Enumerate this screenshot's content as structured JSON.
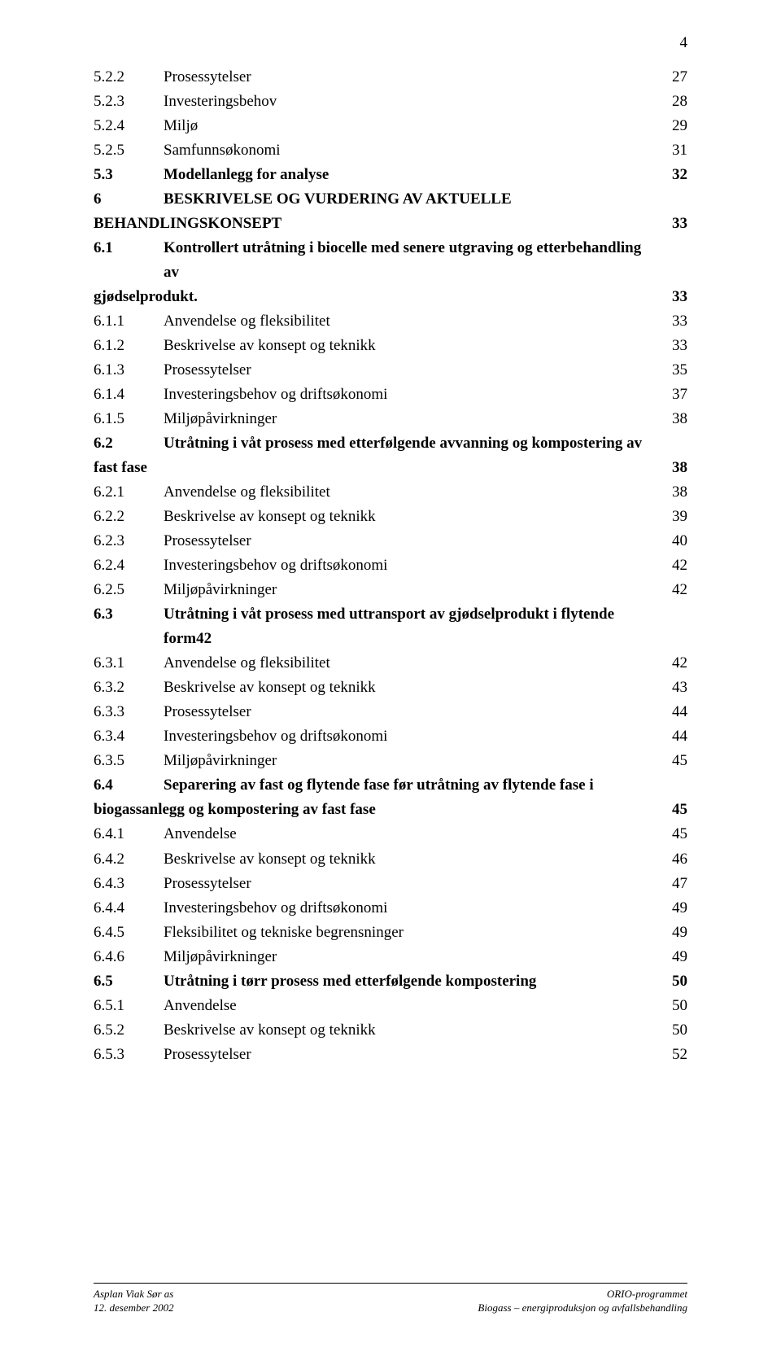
{
  "page_number": "4",
  "toc": [
    {
      "num": "5.2.2",
      "label": "Prosessytelser",
      "page": "27",
      "bold": false
    },
    {
      "num": "5.2.3",
      "label": "Investeringsbehov",
      "page": "28",
      "bold": false
    },
    {
      "num": "5.2.4",
      "label": "Miljø",
      "page": "29",
      "bold": false
    },
    {
      "num": "5.2.5",
      "label": "Samfunnsøkonomi",
      "page": "31",
      "bold": false
    },
    {
      "num": "5.3",
      "label": "Modellanlegg for analyse",
      "page": "32",
      "bold": true
    },
    {
      "num": "6",
      "label": "BESKRIVELSE OG VURDERING AV AKTUELLE",
      "page": "",
      "bold": true,
      "nowrap": true
    },
    {
      "num": "",
      "label": "BEHANDLINGSKONSEPT",
      "page": "33",
      "bold": true,
      "continuation": true
    },
    {
      "num": "6.1",
      "label": "Kontrollert utråtning i biocelle med senere utgraving og etterbehandling av",
      "page": "",
      "bold": true
    },
    {
      "num": "",
      "label": "gjødselprodukt.",
      "page": "33",
      "bold": true,
      "continuation": true
    },
    {
      "num": "6.1.1",
      "label": "Anvendelse og fleksibilitet",
      "page": "33",
      "bold": false
    },
    {
      "num": "6.1.2",
      "label": "Beskrivelse av konsept og teknikk",
      "page": "33",
      "bold": false
    },
    {
      "num": "6.1.3",
      "label": "Prosessytelser",
      "page": "35",
      "bold": false
    },
    {
      "num": "6.1.4",
      "label": "Investeringsbehov og driftsøkonomi",
      "page": "37",
      "bold": false
    },
    {
      "num": "6.1.5",
      "label": "Miljøpåvirkninger",
      "page": "38",
      "bold": false
    },
    {
      "num": "6.2",
      "label": "Utråtning i våt prosess med etterfølgende avvanning og kompostering av",
      "page": "",
      "bold": true
    },
    {
      "num": "",
      "label": "fast fase",
      "page": "38",
      "bold": true,
      "continuation": true
    },
    {
      "num": "6.2.1",
      "label": "Anvendelse og fleksibilitet",
      "page": "38",
      "bold": false
    },
    {
      "num": "6.2.2",
      "label": "Beskrivelse av konsept og teknikk",
      "page": "39",
      "bold": false
    },
    {
      "num": "6.2.3",
      "label": "Prosessytelser",
      "page": "40",
      "bold": false
    },
    {
      "num": "6.2.4",
      "label": "Investeringsbehov og driftsøkonomi",
      "page": "42",
      "bold": false
    },
    {
      "num": "6.2.5",
      "label": "Miljøpåvirkninger",
      "page": "42",
      "bold": false
    },
    {
      "num": "6.3",
      "label": "Utråtning i våt prosess med uttransport av gjødselprodukt i flytende form42",
      "page": "",
      "bold": true
    },
    {
      "num": "6.3.1",
      "label": "Anvendelse og fleksibilitet",
      "page": "42",
      "bold": false
    },
    {
      "num": "6.3.2",
      "label": "Beskrivelse av konsept og teknikk",
      "page": "43",
      "bold": false
    },
    {
      "num": "6.3.3",
      "label": "Prosessytelser",
      "page": "44",
      "bold": false
    },
    {
      "num": "6.3.4",
      "label": "Investeringsbehov og driftsøkonomi",
      "page": "44",
      "bold": false
    },
    {
      "num": "6.3.5",
      "label": "Miljøpåvirkninger",
      "page": "45",
      "bold": false
    },
    {
      "num": "6.4",
      "label": "Separering av fast og flytende fase før utråtning av flytende fase i",
      "page": "",
      "bold": true
    },
    {
      "num": "",
      "label": "biogassanlegg og kompostering av fast fase",
      "page": "45",
      "bold": true,
      "continuation": true
    },
    {
      "num": "6.4.1",
      "label": "Anvendelse",
      "page": "45",
      "bold": false
    },
    {
      "num": "6.4.2",
      "label": "Beskrivelse av konsept og teknikk",
      "page": "46",
      "bold": false
    },
    {
      "num": "6.4.3",
      "label": "Prosessytelser",
      "page": "47",
      "bold": false
    },
    {
      "num": "6.4.4",
      "label": "Investeringsbehov og driftsøkonomi",
      "page": "49",
      "bold": false
    },
    {
      "num": "6.4.5",
      "label": "Fleksibilitet og tekniske begrensninger",
      "page": "49",
      "bold": false
    },
    {
      "num": "6.4.6",
      "label": "Miljøpåvirkninger",
      "page": "49",
      "bold": false
    },
    {
      "num": "6.5",
      "label": "Utråtning i tørr prosess med etterfølgende kompostering",
      "page": "50",
      "bold": true
    },
    {
      "num": "6.5.1",
      "label": "Anvendelse",
      "page": "50",
      "bold": false
    },
    {
      "num": "6.5.2",
      "label": "Beskrivelse av konsept og teknikk",
      "page": "50",
      "bold": false
    },
    {
      "num": "6.5.3",
      "label": "Prosessytelser",
      "page": "52",
      "bold": false
    }
  ],
  "footer": {
    "left_line1": "Asplan Viak Sør as",
    "left_line2": "12. desember 2002",
    "right_line1": "ORIO-programmet",
    "right_line2": "Biogass – energiproduksjon og avfallsbehandling"
  }
}
